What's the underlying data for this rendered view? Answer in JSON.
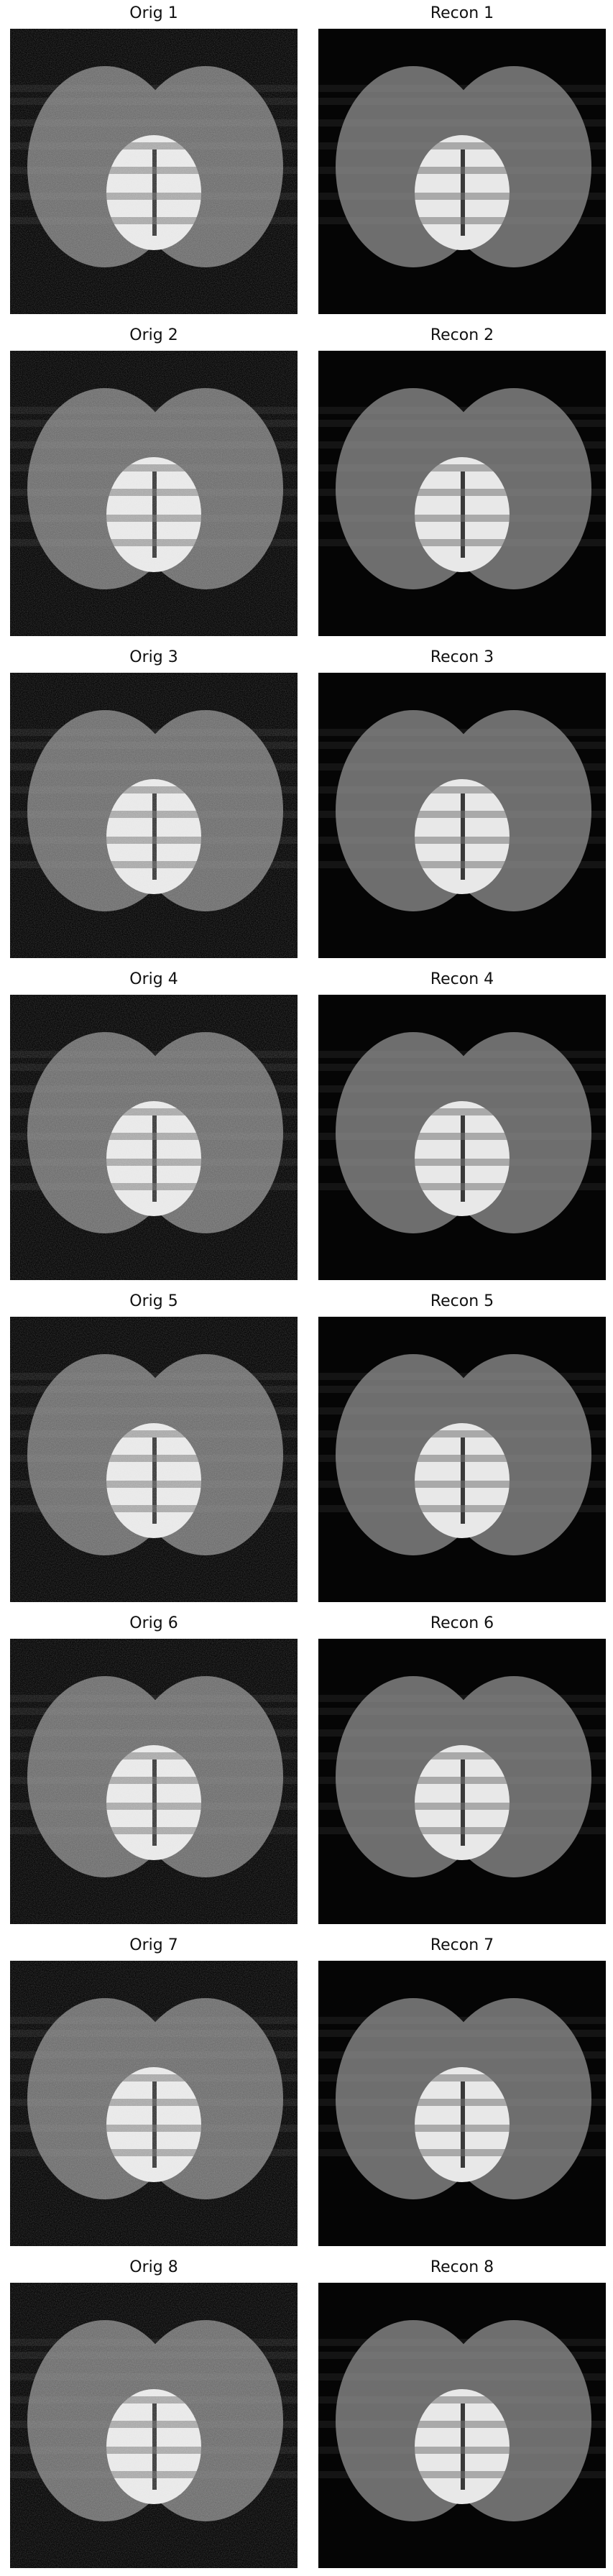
{
  "panels": [
    {
      "orig_title": "Orig 1",
      "recon_title": "Recon 1"
    },
    {
      "orig_title": "Orig 2",
      "recon_title": "Recon 2"
    },
    {
      "orig_title": "Orig 3",
      "recon_title": "Recon 3"
    },
    {
      "orig_title": "Orig 4",
      "recon_title": "Recon 4"
    },
    {
      "orig_title": "Orig 5",
      "recon_title": "Recon 5"
    },
    {
      "orig_title": "Orig 6",
      "recon_title": "Recon 6"
    },
    {
      "orig_title": "Orig 7",
      "recon_title": "Recon 7"
    },
    {
      "orig_title": "Orig 8",
      "recon_title": "Recon 8"
    }
  ],
  "colors": {
    "background": "#050505",
    "large_ellipse": "#6e6e6e",
    "bright_ellipse": "#e8e8e8",
    "stripe": "#b0b0b0"
  }
}
